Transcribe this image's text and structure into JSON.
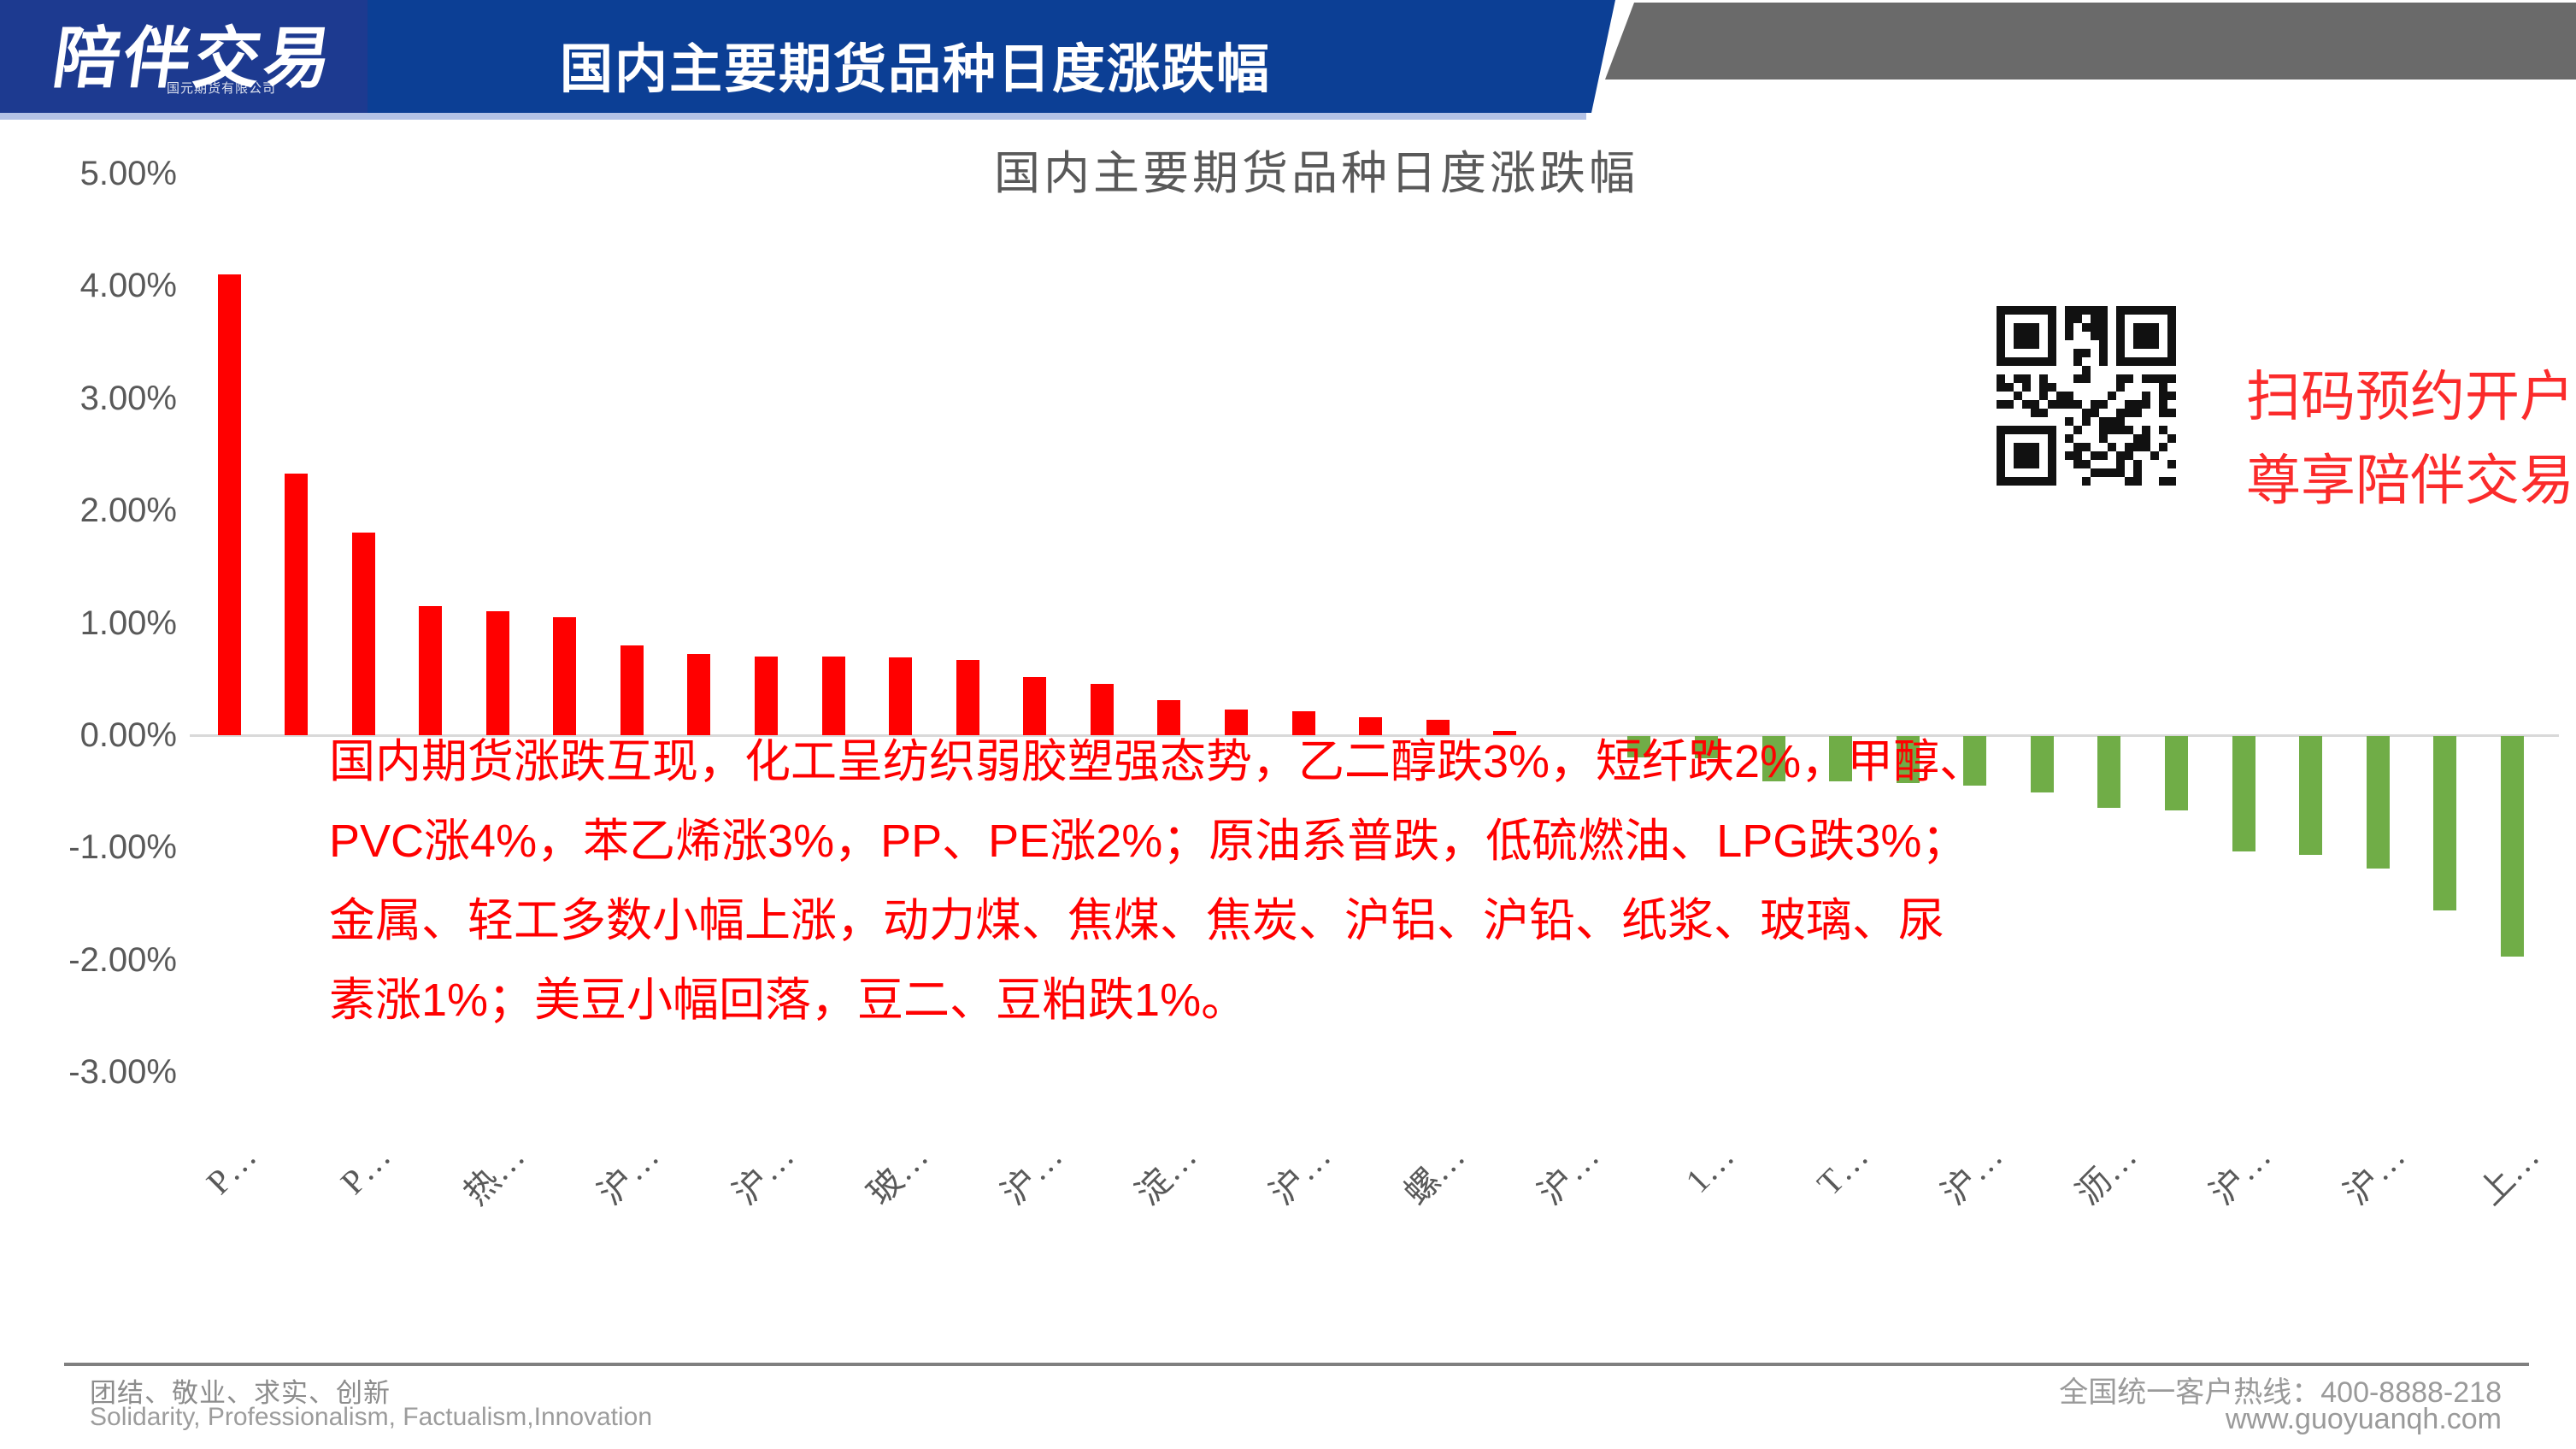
{
  "header": {
    "logo_text": "陪伴交易",
    "logo_subtext": "国元期货有限公司",
    "bar_title": "国内主要期货品种日度涨跌幅",
    "colors": {
      "logo_bg": "#1d3a90",
      "bar_bg": "#0c3f95",
      "ribbon_gray": "#6a6a6a",
      "stripe": "#b3c2e6"
    }
  },
  "chart_data": {
    "type": "bar",
    "title": "国内主要期货品种日度涨跌幅",
    "xlabel": "",
    "ylabel": "",
    "ylim": [
      -3,
      5
    ],
    "grid": false,
    "legend": "none",
    "zero_line": true,
    "bar_color_positive": "#ff0000",
    "bar_color_negative": "#70ad47",
    "axis_line_color": "#d9d9d9",
    "tick_label_color": "#595959",
    "y_ticks": [
      {
        "value": 5,
        "label": "5.00%"
      },
      {
        "value": 4,
        "label": "4.00%"
      },
      {
        "value": 3,
        "label": "3.00%"
      },
      {
        "value": 2,
        "label": "2.00%"
      },
      {
        "value": 1,
        "label": "1.00%"
      },
      {
        "value": 0,
        "label": "0.00%"
      },
      {
        "value": -1,
        "label": "-1.00%"
      },
      {
        "value": -2,
        "label": "-2.00%"
      },
      {
        "value": -3,
        "label": "-3.00%"
      }
    ],
    "values": [
      4.1,
      2.33,
      1.8,
      1.15,
      1.1,
      1.05,
      0.8,
      0.72,
      0.7,
      0.7,
      0.69,
      0.67,
      0.52,
      0.46,
      0.31,
      0.23,
      0.21,
      0.16,
      0.14,
      0.04,
      0.0,
      -0.19,
      -0.2,
      -0.4,
      -0.4,
      -0.42,
      -0.44,
      -0.5,
      -0.64,
      -0.66,
      -1.03,
      -1.06,
      -1.18,
      -1.55,
      -1.96
    ],
    "x_tick_positions": [
      0,
      2,
      4,
      6,
      8,
      10,
      12,
      14,
      16,
      18,
      20,
      22,
      24,
      26,
      28,
      30,
      32,
      34
    ],
    "x_tick_labels": [
      "P…",
      "P…",
      "热…",
      "沪…",
      "沪…",
      "玻…",
      "沪…",
      "淀…",
      "沪…",
      "螺…",
      "沪…",
      "1…",
      "T…",
      "沪…",
      "沥…",
      "沪…",
      "沪…",
      "上…"
    ]
  },
  "annotation": {
    "color": "#ff0000",
    "lines": [
      "国内期货涨跌互现，化工呈纺织弱胶塑强态势，乙二醇跌3%，短纤跌2%，甲醇、",
      "PVC涨4%，苯乙烯涨3%，PP、PE涨2%；原油系普跌，低硫燃油、LPG跌3%；",
      "金属、轻工多数小幅上涨，动力煤、焦煤、焦炭、沪铝、沪铅、纸浆、玻璃、尿",
      "素涨1%；美豆小幅回落，豆二、豆粕跌1%。"
    ]
  },
  "qr_panel": {
    "color": "#fb2b2b",
    "line1": "扫码预约开户",
    "line2": "尊享陪伴交易"
  },
  "footer": {
    "left_cn": "团结、敬业、求实、创新",
    "left_en": "Solidarity, Professionalism, Factualism,Innovation",
    "right_line1": "全国统一客户热线：400-8888-218",
    "right_line2": "www.guoyuanqh.com"
  }
}
